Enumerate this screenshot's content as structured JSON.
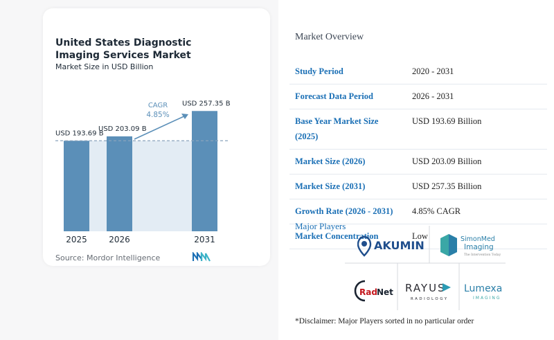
{
  "chart_data": {
    "type": "bar",
    "title": "United States Diagnostic Imaging Services Market",
    "subtitle": "Market Size in USD Billion",
    "categories": [
      "2025",
      "2026",
      "2031"
    ],
    "values": [
      193.69,
      203.09,
      257.35
    ],
    "value_labels": [
      "USD 193.69 B",
      "USD 203.09 B",
      "USD 257.35 B"
    ],
    "cagr_label": "CAGR",
    "cagr_value": "4.85%",
    "source": "Source: Mordor Intelligence",
    "colors": {
      "bar": "#5b8fb8",
      "shade": "#e3ecf4",
      "dashed": "#8aa4bd",
      "arrow": "#5b8fb8"
    }
  },
  "overview": {
    "title": "Market Overview",
    "rows": [
      {
        "key": "Study Period",
        "value": "2020 - 2031"
      },
      {
        "key": "Forecast Data Period",
        "value": "2026 - 2031"
      },
      {
        "key": "Base Year Market Size (2025)",
        "value": "USD 193.69 Billion"
      },
      {
        "key": "Market Size (2026)",
        "value": "USD 203.09 Billion"
      },
      {
        "key": "Market Size (2031)",
        "value": "USD 257.35 Billion"
      },
      {
        "key": "Growth Rate (2026 - 2031)",
        "value": "4.85% CAGR"
      },
      {
        "key": "Market Concentration",
        "value": "Low"
      }
    ]
  },
  "players": {
    "title": "Major Players",
    "logos": [
      "AKUMIN",
      "SimonMed Imaging",
      "RadNet",
      "RAYUS RADIOLOGY",
      "Lumexa IMAGING"
    ],
    "disclaimer": "*Disclaimer: Major Players sorted in no particular order"
  }
}
